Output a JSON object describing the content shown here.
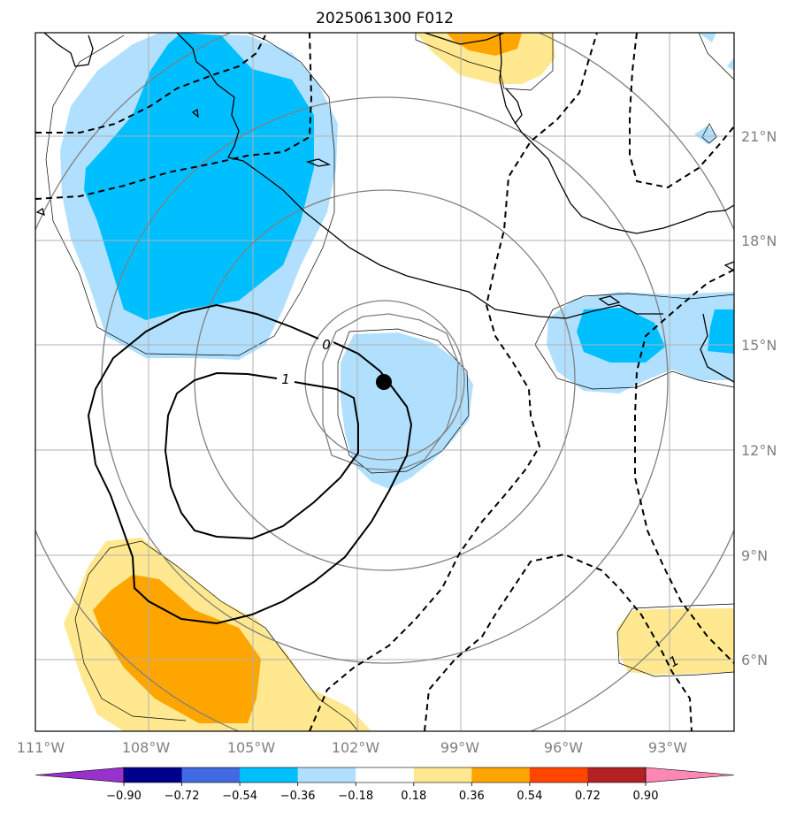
{
  "title": "2025061300 F012",
  "map": {
    "lon_range": [
      -111,
      -91
    ],
    "lat_range": [
      3.8,
      24.0
    ],
    "lon_ticks": [
      "111°W",
      "108°W",
      "105°W",
      "102°W",
      "99°W",
      "96°W",
      "93°W"
    ],
    "lat_ticks": [
      "21°N",
      "18°N",
      "15°N",
      "12°N",
      "9°N",
      "6°N"
    ],
    "grid": true,
    "storm_center": {
      "lon": -100.3,
      "lat": 13.9
    },
    "range_rings_note_free": true,
    "contour_labels": [
      {
        "text": "0",
        "lon": -102.9,
        "lat": 14.9
      },
      {
        "text": "1",
        "lon": -103.1,
        "lat": 13.9
      },
      {
        "text": "1",
        "lon": -91.9,
        "lat": 5.9
      }
    ]
  },
  "colorbar": {
    "ticks": [
      "−0.90",
      "−0.72",
      "−0.54",
      "−0.36",
      "−0.18",
      "0.18",
      "0.36",
      "0.54",
      "0.72",
      "0.90"
    ],
    "colors": [
      "#9932cc",
      "#00008b",
      "#4169e1",
      "#00bfff",
      "#b0e0fe",
      "#ffffff",
      "#ffe88f",
      "#ffa500",
      "#ff4500",
      "#b22222",
      "#ff87b4"
    ]
  }
}
